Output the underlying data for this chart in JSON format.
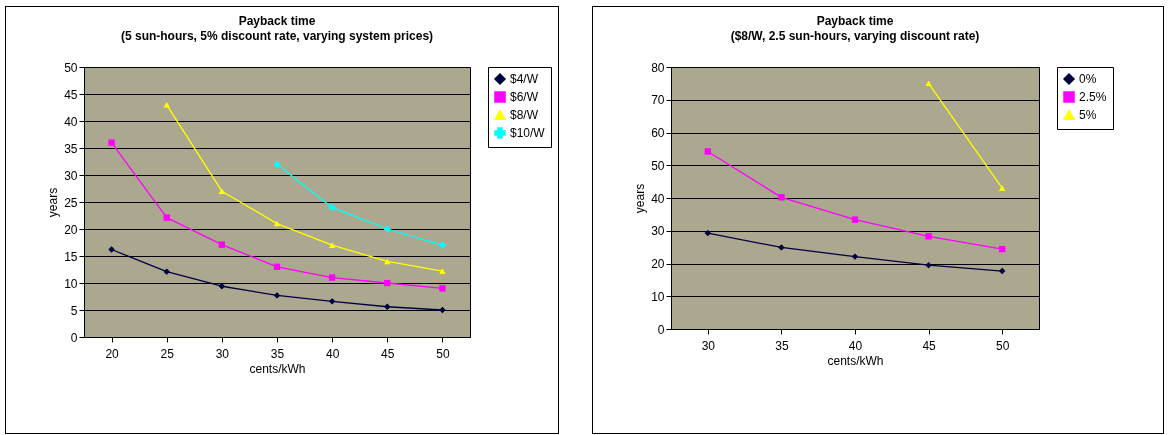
{
  "chart_data": [
    {
      "type": "line",
      "title": "Payback time",
      "subtitle": "(5 sun-hours, 5% discount rate, varying system prices)",
      "xlabel": "cents/kWh",
      "ylabel": "years",
      "categories": [
        "20",
        "25",
        "30",
        "35",
        "40",
        "45",
        "50"
      ],
      "ylim": [
        0,
        50
      ],
      "yticks": [
        0,
        5,
        10,
        15,
        20,
        25,
        30,
        35,
        40,
        45,
        50
      ],
      "grid": "y",
      "legend": "right",
      "series": [
        {
          "name": "$4/W",
          "color": "#000040",
          "marker": "diamond",
          "values": [
            16.2,
            12.1,
            9.4,
            7.7,
            6.6,
            5.6,
            5.0
          ]
        },
        {
          "name": "$6/W",
          "color": "#ff00ff",
          "marker": "square",
          "values": [
            36,
            22.1,
            17.1,
            13,
            11,
            10,
            9
          ]
        },
        {
          "name": "$8/W",
          "color": "#ffff00",
          "marker": "triangle",
          "values": [
            null,
            43,
            27,
            21,
            17,
            14,
            12.2
          ]
        },
        {
          "name": "$10/W",
          "color": "#00ffff",
          "marker": "cross",
          "values": [
            null,
            null,
            null,
            32,
            24,
            20,
            17
          ]
        }
      ]
    },
    {
      "type": "line",
      "title": "Payback time",
      "subtitle": "($8/W, 2.5 sun-hours, varying discount rate)",
      "xlabel": "cents/kWh",
      "ylabel": "years",
      "categories": [
        "30",
        "35",
        "40",
        "45",
        "50"
      ],
      "ylim": [
        0,
        80
      ],
      "yticks": [
        0,
        10,
        20,
        30,
        40,
        50,
        60,
        70,
        80
      ],
      "grid": "y",
      "legend": "right",
      "series": [
        {
          "name": "0%",
          "color": "#000040",
          "marker": "diamond",
          "values": [
            29.3,
            24.9,
            22.1,
            19.5,
            17.7
          ]
        },
        {
          "name": "2.5%",
          "color": "#ff00ff",
          "marker": "square",
          "values": [
            54.2,
            40.2,
            33.4,
            28.3,
            24.4
          ]
        },
        {
          "name": "5%",
          "color": "#ffff00",
          "marker": "triangle",
          "values": [
            null,
            null,
            null,
            75,
            43
          ]
        }
      ]
    }
  ]
}
